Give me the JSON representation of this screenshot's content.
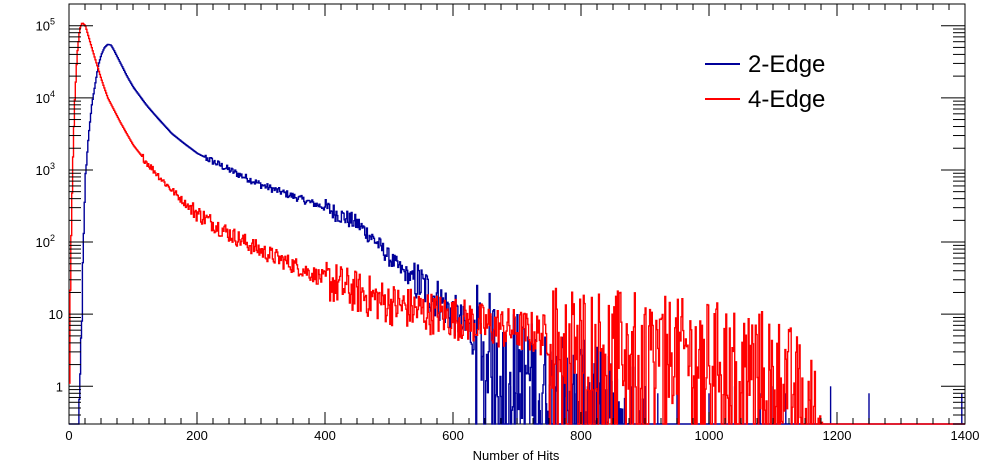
{
  "chart_data": {
    "type": "line",
    "title": "",
    "xlabel": "Number of Hits",
    "ylabel": "",
    "xlim": [
      0,
      1400
    ],
    "y_scale": "log",
    "ylim": [
      0.3,
      200000
    ],
    "grid": false,
    "legend_position": "top-right",
    "x_ticks": [
      0,
      200,
      400,
      600,
      800,
      1000,
      1200,
      1400
    ],
    "x_tick_labels": [
      "0",
      "200",
      "400",
      "600",
      "800",
      "1000",
      "1200",
      "1400"
    ],
    "y_ticks": [
      {
        "value": 1,
        "base": "1",
        "exp": ""
      },
      {
        "value": 10,
        "base": "10",
        "exp": ""
      },
      {
        "value": 100,
        "base": "10",
        "exp": "2"
      },
      {
        "value": 1000,
        "base": "10",
        "exp": "3"
      },
      {
        "value": 10000,
        "base": "10",
        "exp": "4"
      },
      {
        "value": 100000,
        "base": "10",
        "exp": "5"
      }
    ],
    "series": [
      {
        "name": "2-Edge",
        "color": "#000099",
        "points": [
          [
            0,
            0.3
          ],
          [
            15,
            0.3
          ],
          [
            18,
            2
          ],
          [
            20,
            20
          ],
          [
            25,
            800
          ],
          [
            30,
            3000
          ],
          [
            35,
            8000
          ],
          [
            40,
            15000
          ],
          [
            45,
            28000
          ],
          [
            50,
            40000
          ],
          [
            55,
            50000
          ],
          [
            60,
            55000
          ],
          [
            65,
            54000
          ],
          [
            70,
            45000
          ],
          [
            80,
            30000
          ],
          [
            90,
            20000
          ],
          [
            100,
            14000
          ],
          [
            120,
            8000
          ],
          [
            140,
            5000
          ],
          [
            160,
            3200
          ],
          [
            180,
            2300
          ],
          [
            200,
            1700
          ],
          [
            250,
            1000
          ],
          [
            300,
            620
          ],
          [
            350,
            430
          ],
          [
            400,
            300
          ],
          [
            430,
            220
          ],
          [
            450,
            180
          ],
          [
            480,
            100
          ],
          [
            500,
            60
          ],
          [
            520,
            40
          ],
          [
            550,
            25
          ],
          [
            580,
            15
          ],
          [
            600,
            10
          ],
          [
            620,
            6
          ],
          [
            650,
            4
          ],
          [
            700,
            2
          ],
          [
            750,
            1
          ],
          [
            800,
            0.8
          ],
          [
            850,
            0.5
          ],
          [
            900,
            0.3
          ],
          [
            1000,
            0.3
          ],
          [
            1400,
            0.3
          ]
        ],
        "spikes": [
          690,
          700,
          705,
          720,
          735,
          745,
          760,
          775,
          790,
          810,
          830,
          850,
          880,
          900,
          920,
          950,
          980,
          1000,
          1040,
          1060,
          1080,
          1100,
          1120,
          1160,
          1190,
          1250,
          1395
        ]
      },
      {
        "name": "4-Edge",
        "color": "#ff0000",
        "points": [
          [
            0,
            0.5
          ],
          [
            2,
            50
          ],
          [
            5,
            1000
          ],
          [
            8,
            8000
          ],
          [
            12,
            40000
          ],
          [
            16,
            90000
          ],
          [
            20,
            110000
          ],
          [
            25,
            100000
          ],
          [
            30,
            70000
          ],
          [
            40,
            35000
          ],
          [
            50,
            18000
          ],
          [
            60,
            10000
          ],
          [
            80,
            4500
          ],
          [
            100,
            2200
          ],
          [
            120,
            1300
          ],
          [
            150,
            650
          ],
          [
            180,
            350
          ],
          [
            200,
            250
          ],
          [
            250,
            130
          ],
          [
            300,
            75
          ],
          [
            350,
            48
          ],
          [
            400,
            30
          ],
          [
            450,
            20
          ],
          [
            500,
            14
          ],
          [
            550,
            11
          ],
          [
            600,
            9
          ],
          [
            650,
            7
          ],
          [
            700,
            6
          ],
          [
            750,
            5
          ],
          [
            800,
            4.5
          ],
          [
            850,
            4
          ],
          [
            900,
            3.5
          ],
          [
            950,
            3
          ],
          [
            1000,
            2.8
          ],
          [
            1050,
            2.5
          ],
          [
            1100,
            2
          ],
          [
            1130,
            1.2
          ],
          [
            1150,
            0.6
          ],
          [
            1180,
            0.3
          ],
          [
            1400,
            0.3
          ]
        ]
      }
    ]
  }
}
